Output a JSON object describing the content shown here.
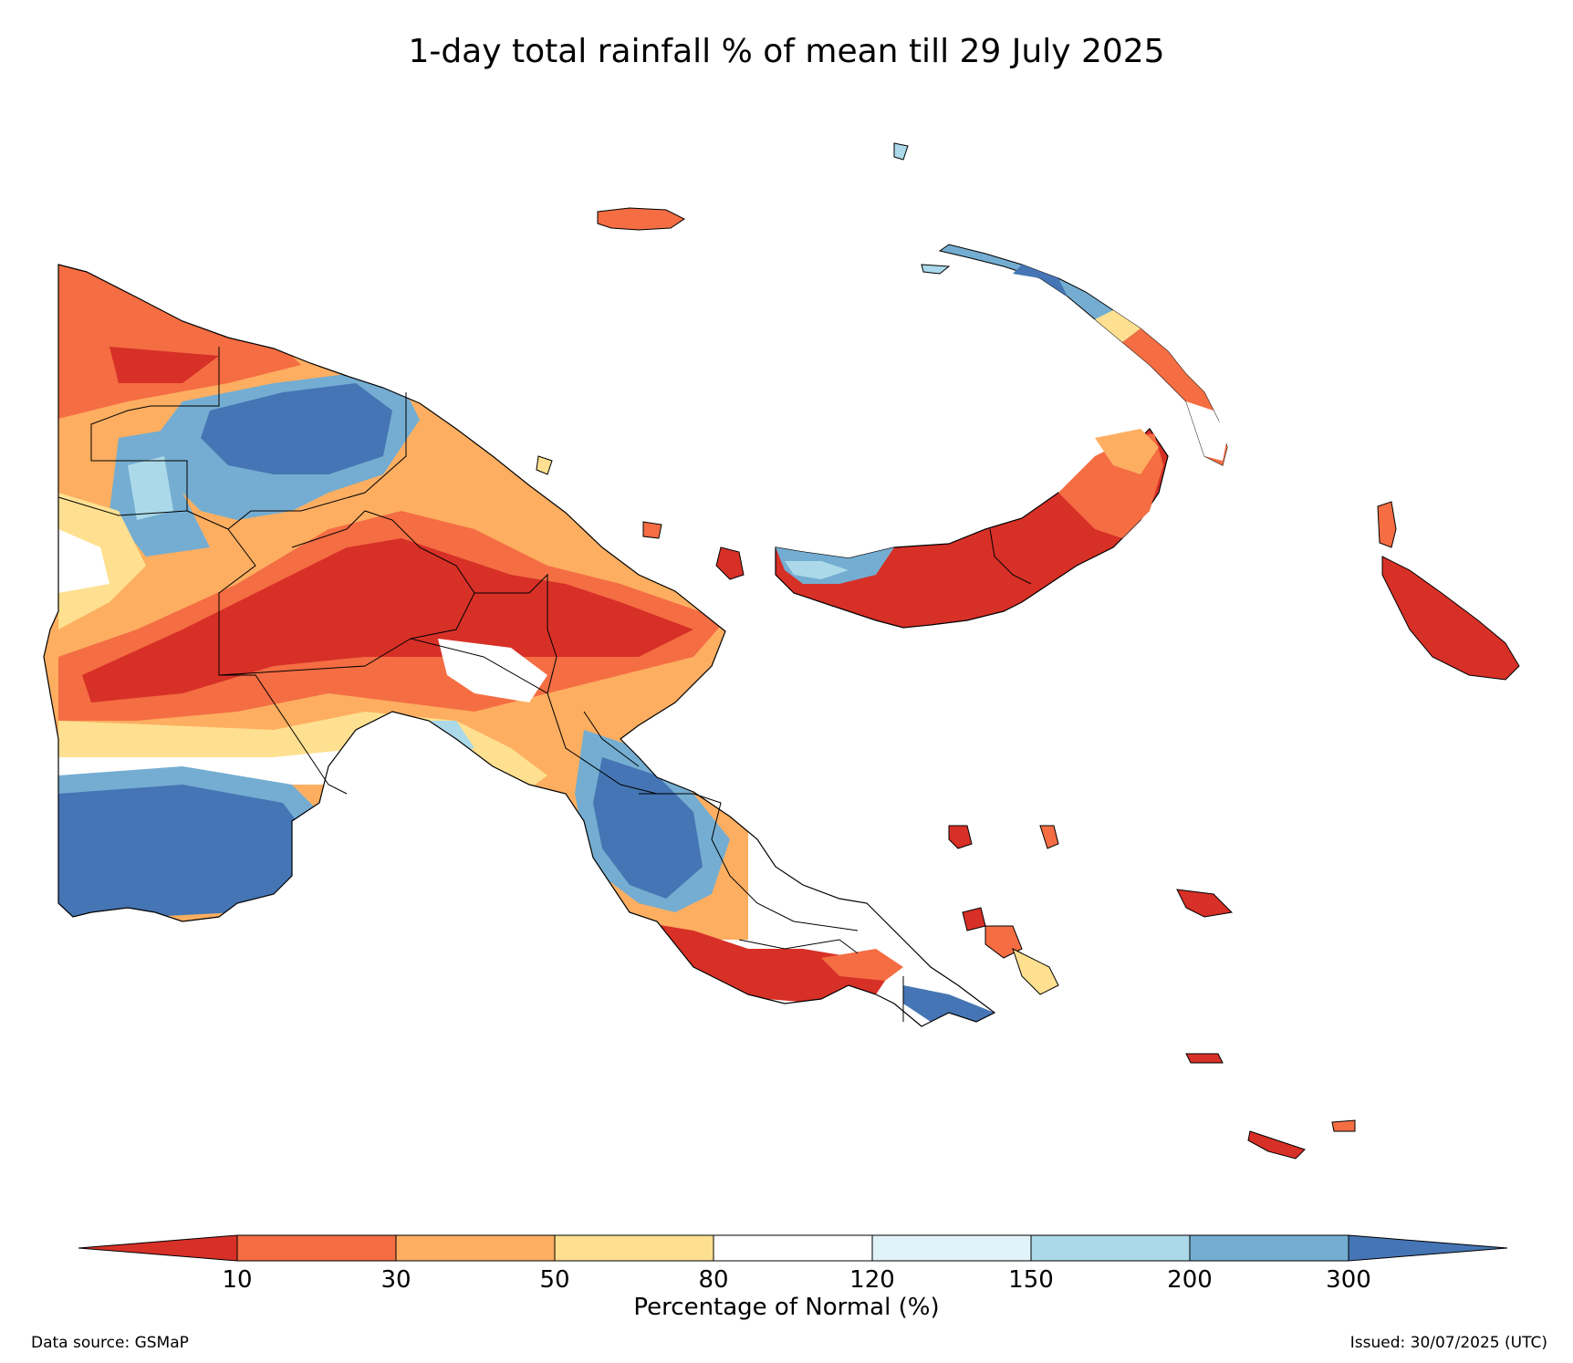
{
  "title": "1-day total rainfall % of mean till 29 July 2025",
  "colorbar": {
    "label": "Percentage of Normal (%)",
    "ticks": [
      "10",
      "30",
      "50",
      "80",
      "120",
      "150",
      "200",
      "300"
    ],
    "colors": {
      "below_10": "#d73027",
      "10_30": "#f46d43",
      "30_50": "#fdae61",
      "50_80": "#fee090",
      "80_120": "#ffffff",
      "120_150": "#e0f3f8",
      "150_200": "#abd9e9",
      "200_300": "#74add1",
      "above_300": "#4575b4"
    }
  },
  "footer": {
    "source": "Data source: GSMaP",
    "issued": "Issued: 30/07/2025 (UTC)"
  }
}
